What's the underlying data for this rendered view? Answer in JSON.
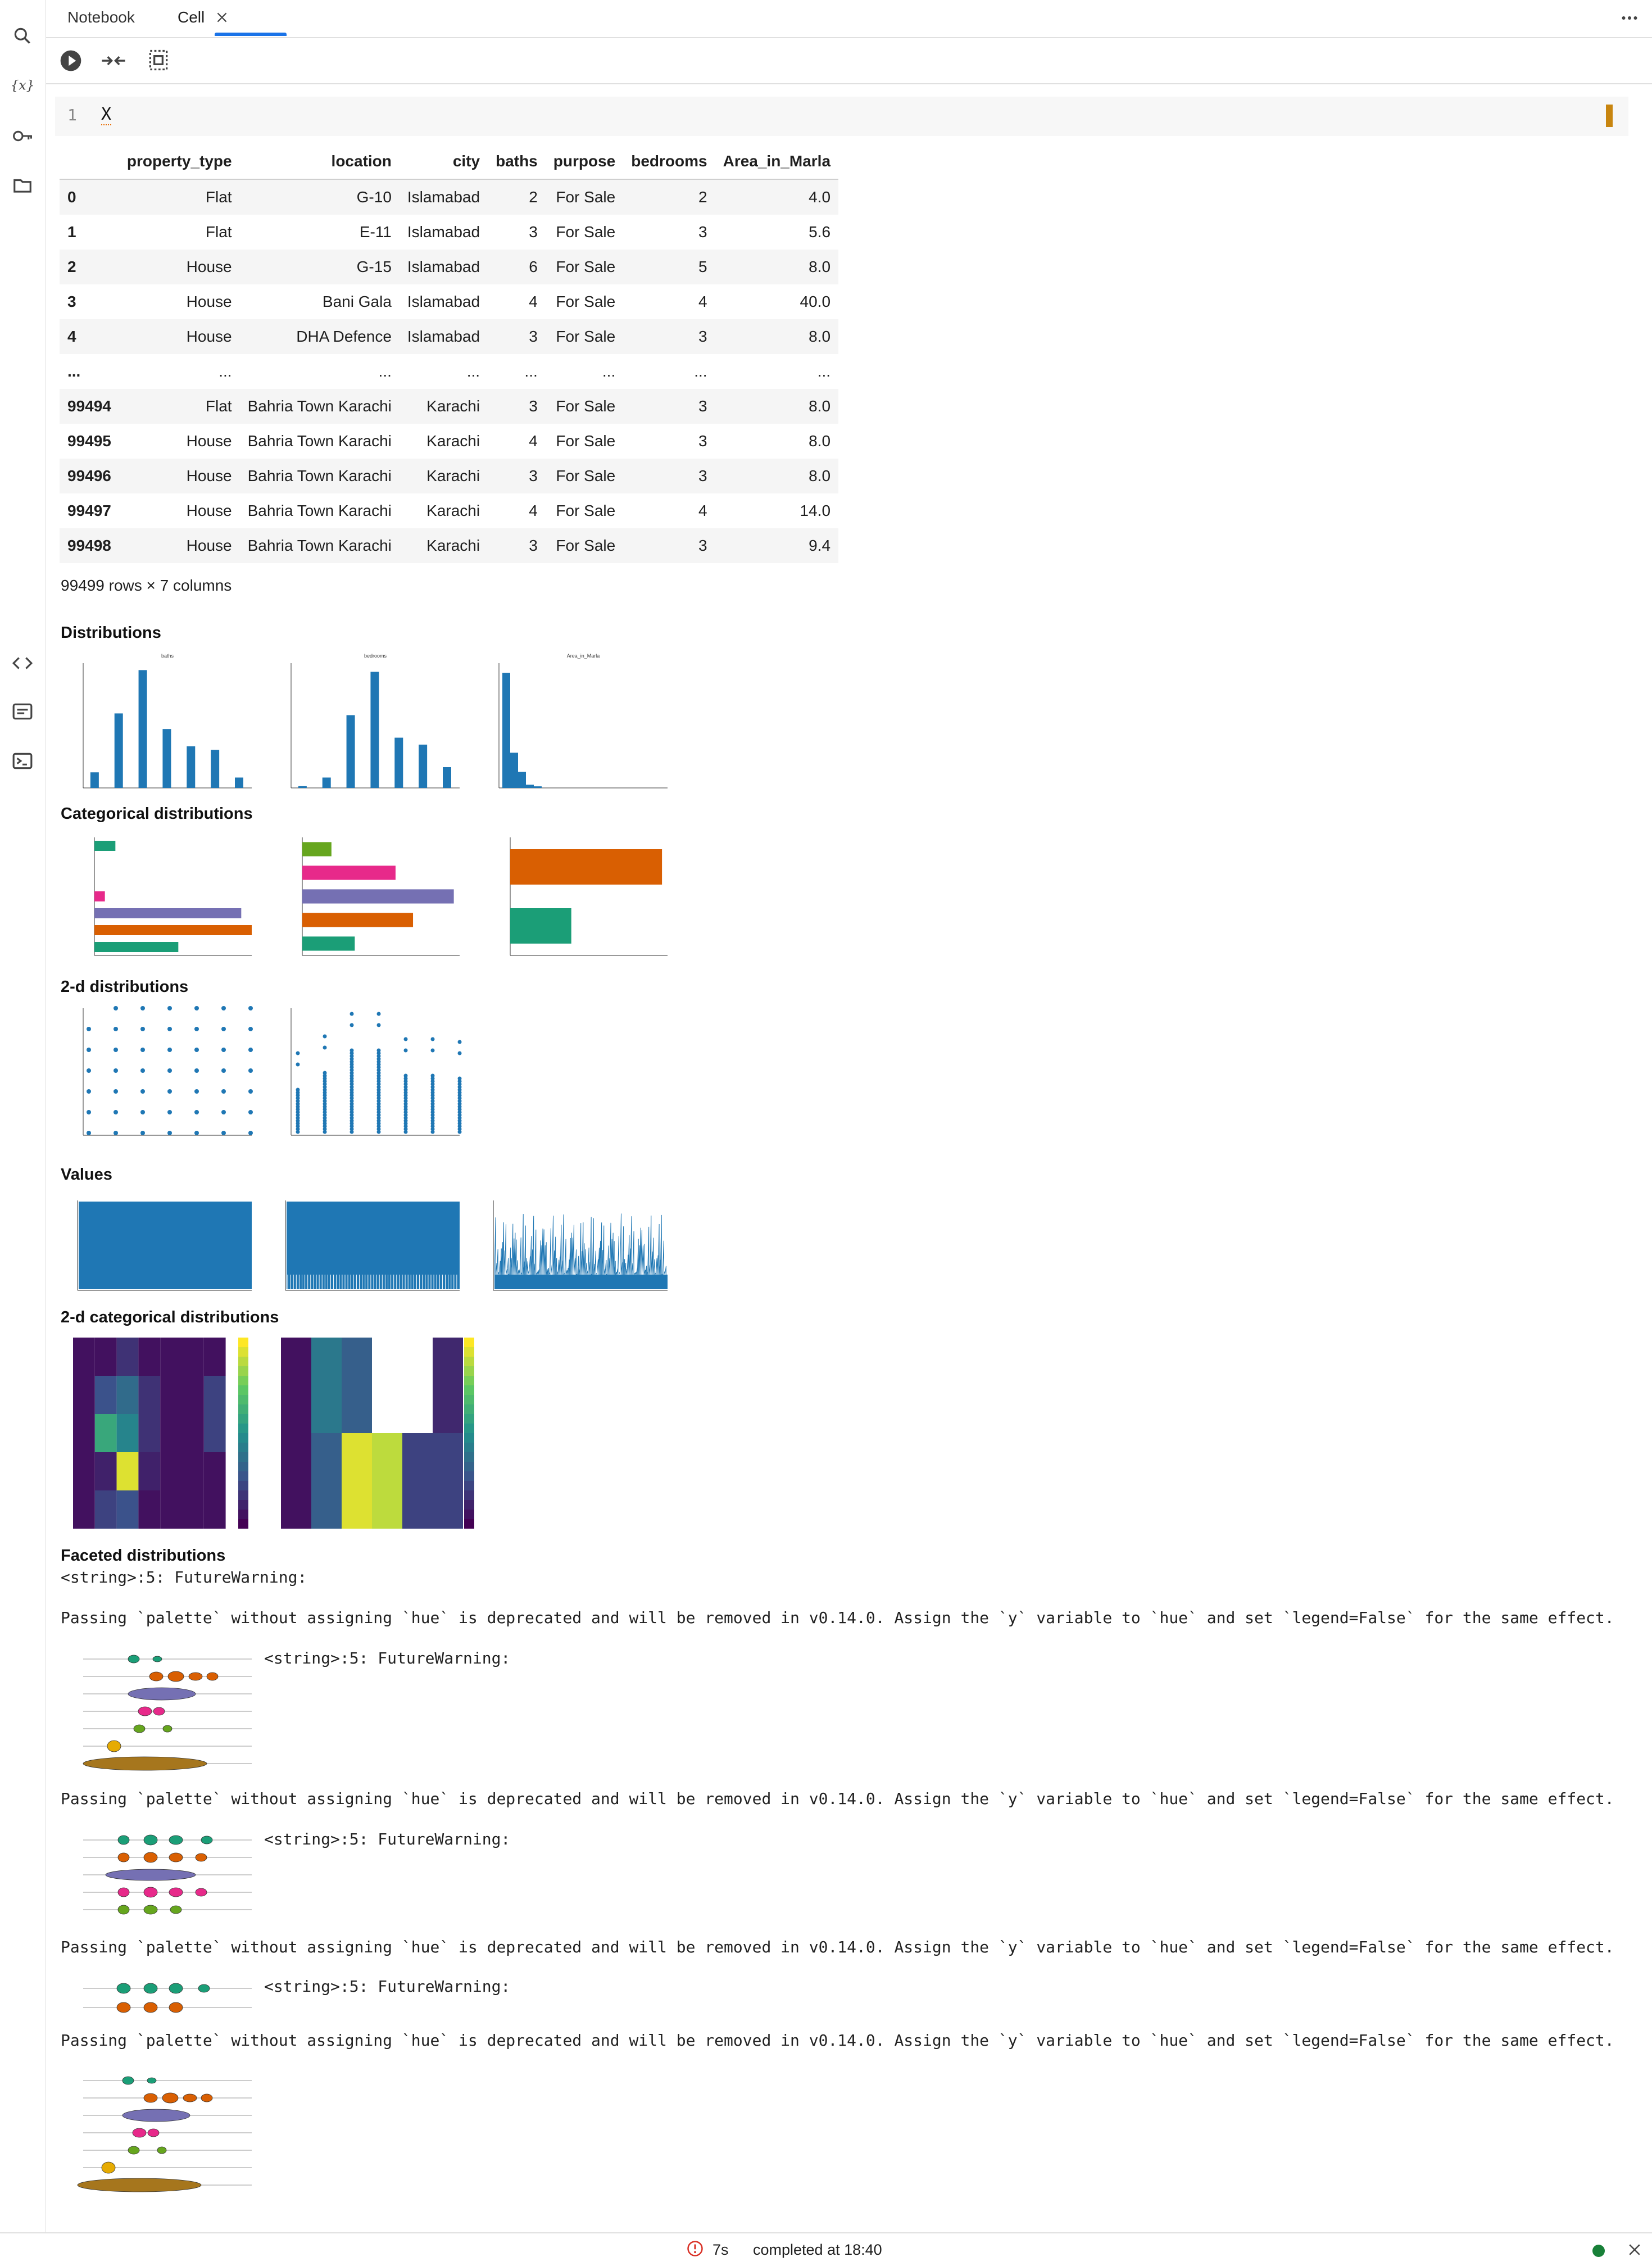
{
  "tabs": [
    {
      "label": "Notebook"
    },
    {
      "label": "Cell"
    }
  ],
  "cell": {
    "line_number": "1",
    "code": "X"
  },
  "table": {
    "columns": [
      "",
      "property_type",
      "location",
      "city",
      "baths",
      "purpose",
      "bedrooms",
      "Area_in_Marla"
    ],
    "rows": [
      [
        "0",
        "Flat",
        "G-10",
        "Islamabad",
        "2",
        "For Sale",
        "2",
        "4.0"
      ],
      [
        "1",
        "Flat",
        "E-11",
        "Islamabad",
        "3",
        "For Sale",
        "3",
        "5.6"
      ],
      [
        "2",
        "House",
        "G-15",
        "Islamabad",
        "6",
        "For Sale",
        "5",
        "8.0"
      ],
      [
        "3",
        "House",
        "Bani Gala",
        "Islamabad",
        "4",
        "For Sale",
        "4",
        "40.0"
      ],
      [
        "4",
        "House",
        "DHA Defence",
        "Islamabad",
        "3",
        "For Sale",
        "3",
        "8.0"
      ],
      [
        "...",
        "...",
        "...",
        "...",
        "...",
        "...",
        "...",
        "..."
      ],
      [
        "99494",
        "Flat",
        "Bahria Town Karachi",
        "Karachi",
        "3",
        "For Sale",
        "3",
        "8.0"
      ],
      [
        "99495",
        "House",
        "Bahria Town Karachi",
        "Karachi",
        "4",
        "For Sale",
        "3",
        "8.0"
      ],
      [
        "99496",
        "House",
        "Bahria Town Karachi",
        "Karachi",
        "3",
        "For Sale",
        "3",
        "8.0"
      ],
      [
        "99497",
        "House",
        "Bahria Town Karachi",
        "Karachi",
        "4",
        "For Sale",
        "4",
        "14.0"
      ],
      [
        "99498",
        "House",
        "Bahria Town Karachi",
        "Karachi",
        "3",
        "For Sale",
        "3",
        "9.4"
      ]
    ],
    "footer": "99499 rows × 7 columns"
  },
  "sections": {
    "distributions": "Distributions",
    "categorical": "Categorical distributions",
    "two_d": "2-d distributions",
    "values": "Values",
    "two_d_categorical": "2-d categorical distributions",
    "faceted": "Faceted distributions"
  },
  "warnings": {
    "header": "<string>:5: FutureWarning:",
    "message": "Passing `palette` without assigning `hue` is deprecated and will be removed in v0.14.0. Assign the `y` variable to `hue` and set `legend=False` for the same effect."
  },
  "status": {
    "duration": "7s",
    "completed": "completed at 18:40"
  },
  "colors": {
    "accent": "#1a73e8",
    "bar": "#1f77b4",
    "cat_palette": [
      "#1b9e77",
      "#d95f02",
      "#7570b3",
      "#e7298a",
      "#66a61e",
      "#e6ab02",
      "#a6761d"
    ],
    "status_ok": "#188038",
    "status_err": "#d93025"
  },
  "icons": [
    "search-icon",
    "variables-icon",
    "key-icon",
    "folder-icon",
    "code-icon",
    "terminal-list-icon",
    "terminal-icon",
    "run-icon",
    "collapse-icon",
    "copy-icon",
    "more-icon",
    "close-icon"
  ],
  "chart_data": [
    {
      "type": "bar",
      "title": "baths",
      "values": [
        9,
        43,
        68,
        34,
        24,
        22,
        6
      ]
    },
    {
      "type": "bar",
      "title": "bedrooms",
      "values": [
        1,
        6,
        42,
        67,
        29,
        25,
        12
      ]
    },
    {
      "type": "bar",
      "title": "Area_in_Marla",
      "values": [
        72,
        22,
        10,
        2,
        1
      ]
    },
    {
      "type": "bar",
      "values": [
        2,
        0,
        0,
        1,
        14,
        15,
        8
      ],
      "colors": [
        "#1b9e77",
        "#d95f02",
        "#7570b3",
        "#e7298a",
        "#66a61e",
        "#e6ab02",
        "#a6761d"
      ]
    },
    {
      "type": "bar",
      "values": [
        5,
        16,
        26,
        19,
        9
      ]
    },
    {
      "type": "bar",
      "values": [
        82,
        33
      ]
    },
    {
      "type": "scatter"
    },
    {
      "type": "scatter"
    },
    {
      "type": "area"
    },
    {
      "type": "area"
    },
    {
      "type": "line"
    },
    {
      "type": "heatmap"
    },
    {
      "type": "heatmap"
    }
  ]
}
